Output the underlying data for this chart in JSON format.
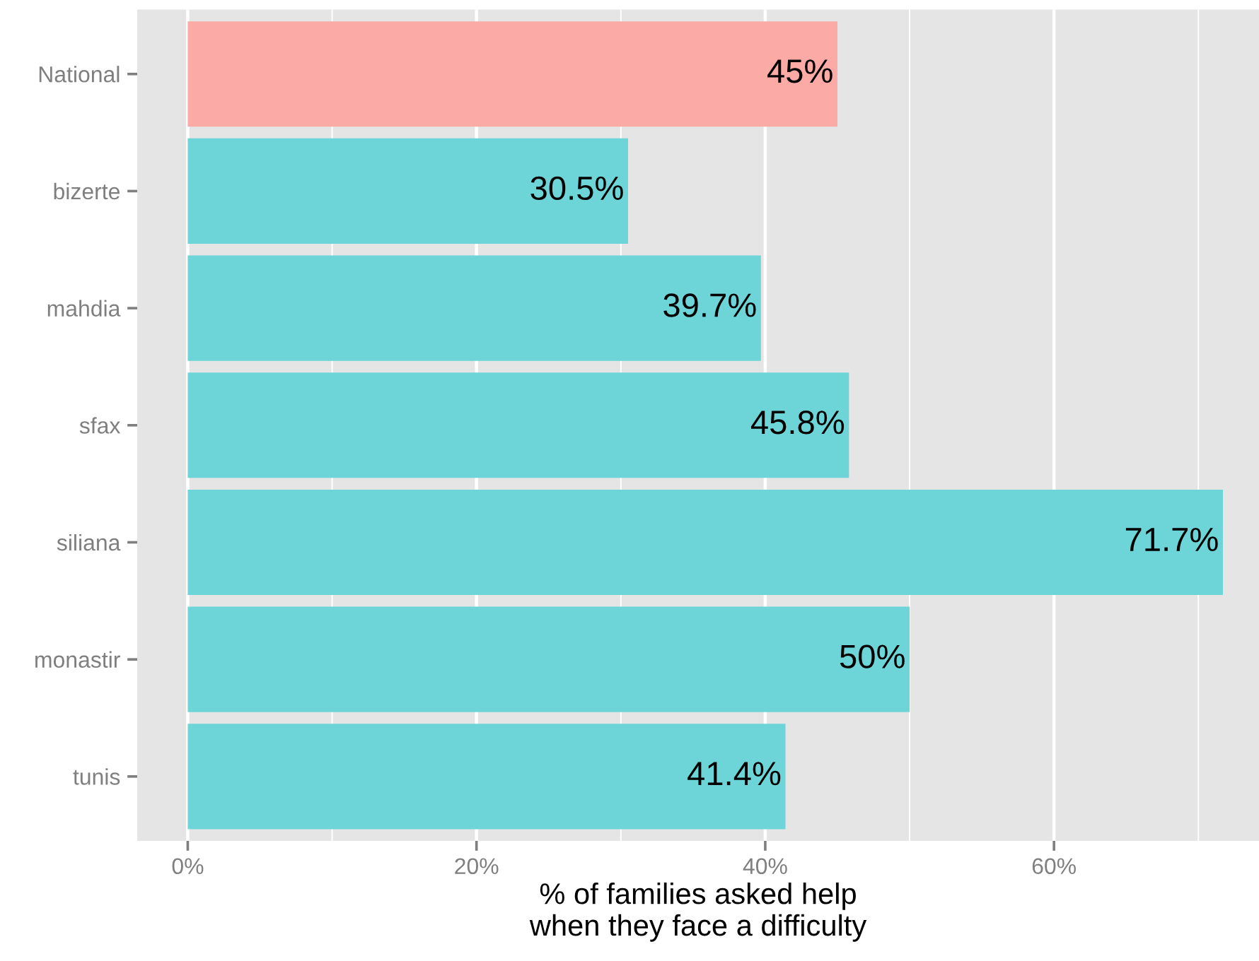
{
  "chart_data": {
    "type": "bar",
    "orientation": "horizontal",
    "categories": [
      "National",
      "bizerte",
      "mahdia",
      "sfax",
      "siliana",
      "monastir",
      "tunis"
    ],
    "values": [
      45,
      30.5,
      39.7,
      45.8,
      71.7,
      50,
      41.4
    ],
    "value_labels": [
      "45%",
      "30.5%",
      "39.7%",
      "45.8%",
      "71.7%",
      "50%",
      "41.4%"
    ],
    "colors": [
      "#fcaaa6",
      "#6dd4d7",
      "#6dd4d7",
      "#6dd4d7",
      "#6dd4d7",
      "#6dd4d7",
      "#6dd4d7"
    ],
    "xlabel": "% of families asked help\nwhen they face a difficulty",
    "xlim": [
      -3.5,
      74.2
    ],
    "xticks": [
      {
        "value": 0,
        "label": "0%"
      },
      {
        "value": 10,
        "label": null
      },
      {
        "value": 20,
        "label": "20%"
      },
      {
        "value": 30,
        "label": null
      },
      {
        "value": 40,
        "label": "40%"
      },
      {
        "value": 50,
        "label": null
      },
      {
        "value": 60,
        "label": "60%"
      },
      {
        "value": 70,
        "label": null
      }
    ],
    "grid": true,
    "legend": false
  }
}
